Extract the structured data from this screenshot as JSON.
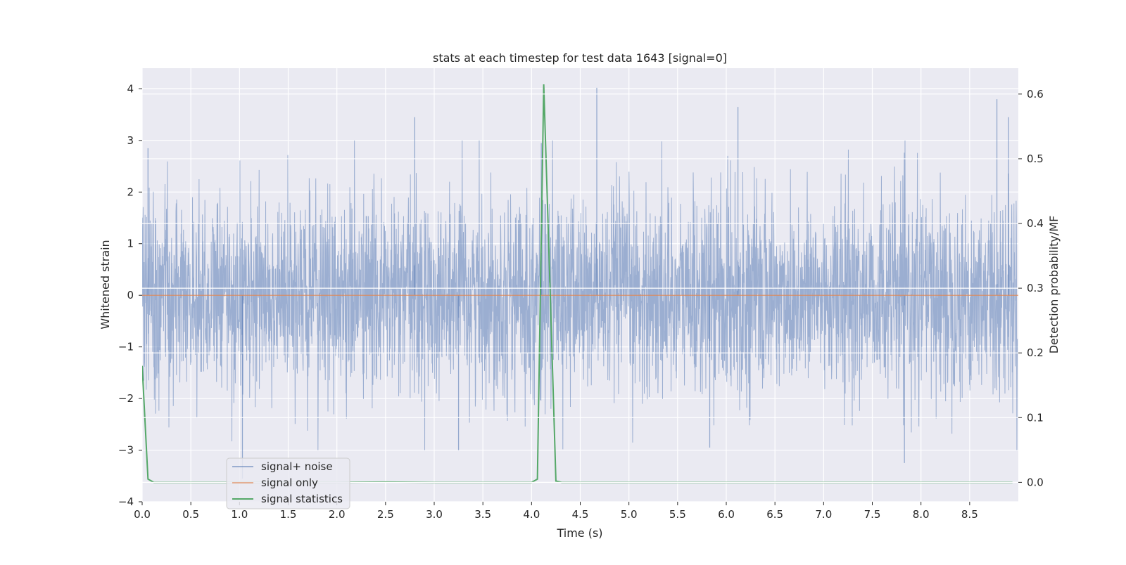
{
  "chart_data": {
    "type": "line",
    "title": "stats at each timestep for test data 1643 [signal=0]",
    "xlabel": "Time (s)",
    "ylabel_left": "Whitened strain",
    "ylabel_right": "Detection probability/MF",
    "xlim": [
      0.0,
      9.0
    ],
    "ylim_left": [
      -4.0,
      4.4
    ],
    "ylim_right": [
      -0.03,
      0.64
    ],
    "x_ticks": [
      "0.0",
      "0.5",
      "1.0",
      "1.5",
      "2.0",
      "2.5",
      "3.0",
      "3.5",
      "4.0",
      "4.5",
      "5.0",
      "5.5",
      "6.0",
      "6.5",
      "7.0",
      "7.5",
      "8.0",
      "8.5"
    ],
    "y_left_ticks": [
      "−4",
      "−3",
      "−2",
      "−1",
      "0",
      "1",
      "2",
      "3",
      "4"
    ],
    "y_right_ticks": [
      "0.0",
      "0.1",
      "0.2",
      "0.3",
      "0.4",
      "0.5",
      "0.6"
    ],
    "grid": true,
    "legend_position": "lower-left",
    "colors": {
      "background": "#eaeaf2",
      "grid": "#ffffff",
      "signal_noise": "#4c72b0",
      "signal_only": "#dd8452",
      "signal_statistics": "#55a868"
    },
    "series": [
      {
        "name": "signal+ noise",
        "axis": "left",
        "description_values": "whitened strain noise, approx. range -3.3 to 4.0, dense samples over 0-9 s",
        "notable_peaks": [
          {
            "x": 0.06,
            "y": 2.85
          },
          {
            "x": 1.03,
            "y": -3.55
          },
          {
            "x": 2.8,
            "y": 3.45
          },
          {
            "x": 3.25,
            "y": -3.0
          },
          {
            "x": 4.1,
            "y": 2.95
          },
          {
            "x": 4.67,
            "y": 4.02
          },
          {
            "x": 5.83,
            "y": -2.95
          },
          {
            "x": 6.12,
            "y": 3.65
          },
          {
            "x": 7.83,
            "y": -3.25
          },
          {
            "x": 8.78,
            "y": 3.8
          },
          {
            "x": 8.9,
            "y": 3.45
          }
        ]
      },
      {
        "name": "signal only",
        "axis": "left",
        "x": [
          0.0,
          9.0
        ],
        "values": [
          0.0,
          0.0
        ]
      },
      {
        "name": "signal statistics",
        "axis": "right",
        "x": [
          0.0,
          0.06,
          0.12,
          0.5,
          1.0,
          2.0,
          2.5,
          3.0,
          3.5,
          4.0,
          4.06,
          4.125,
          4.19,
          4.25,
          4.31,
          5.0,
          6.0,
          7.0,
          8.0,
          8.94
        ],
        "values": [
          0.18,
          0.005,
          0.0,
          0.0,
          0.0,
          0.0,
          0.0005,
          0.0,
          0.0,
          0.0,
          0.005,
          0.615,
          0.3,
          0.002,
          0.0,
          0.0,
          0.0,
          0.0,
          0.0,
          0.0
        ]
      }
    ]
  }
}
